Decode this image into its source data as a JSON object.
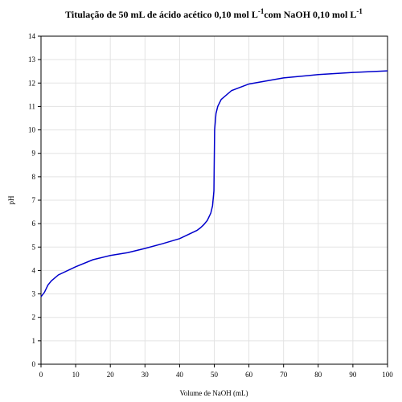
{
  "chart_data": {
    "type": "line",
    "title": [
      "Titulação de 50 mL de ácido acético 0,10 mol L",
      "-1",
      "com NaOH 0,10 mol L",
      "-1"
    ],
    "x_label": "Volume de NaOH (mL)",
    "y_label": "pH",
    "x": [
      0,
      1,
      2,
      3,
      5,
      10,
      15,
      20,
      25,
      30,
      35,
      40,
      45,
      46,
      47,
      48,
      49,
      49.5,
      49.9,
      50,
      50.1,
      50.5,
      51,
      52,
      55,
      60,
      70,
      80,
      90,
      100
    ],
    "series": [
      {
        "name": "pH",
        "color": "#0000cc",
        "values": [
          2.88,
          3.07,
          3.38,
          3.56,
          3.81,
          4.16,
          4.46,
          4.64,
          4.76,
          4.94,
          5.14,
          5.36,
          5.71,
          5.82,
          5.96,
          6.14,
          6.45,
          6.76,
          7.4,
          8.72,
          10.0,
          10.7,
          11.0,
          11.3,
          11.68,
          11.96,
          12.22,
          12.36,
          12.45,
          12.52
        ]
      }
    ],
    "xlim": [
      0,
      100
    ],
    "xticks": [
      0,
      10,
      20,
      30,
      40,
      50,
      60,
      70,
      80,
      90,
      100
    ],
    "ylim": [
      0,
      14
    ],
    "yticks": [
      0,
      1,
      2,
      3,
      4,
      5,
      6,
      7,
      8,
      9,
      10,
      11,
      12,
      13,
      14
    ],
    "grid": true
  }
}
